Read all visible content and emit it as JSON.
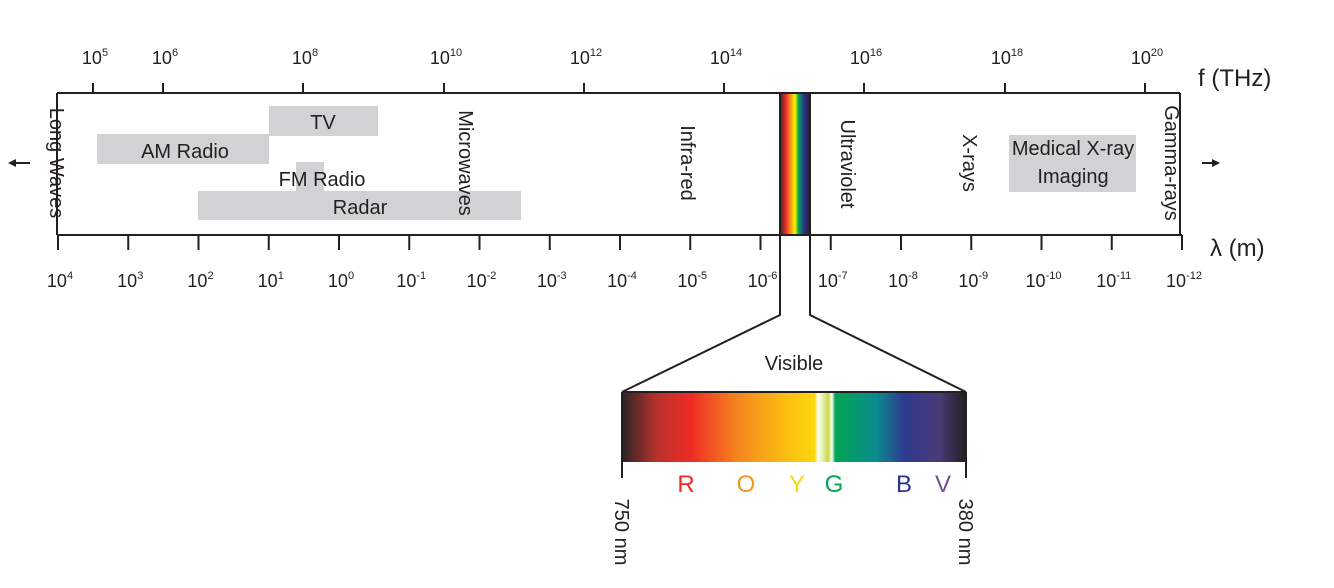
{
  "frequency_axis": {
    "label": "f (THz)",
    "ticks": [
      {
        "base": "10",
        "exponent": "5"
      },
      {
        "base": "10",
        "exponent": "6"
      },
      {
        "base": "10",
        "exponent": "8"
      },
      {
        "base": "10",
        "exponent": "10"
      },
      {
        "base": "10",
        "exponent": "12"
      },
      {
        "base": "10",
        "exponent": "14"
      },
      {
        "base": "10",
        "exponent": "16"
      },
      {
        "base": "10",
        "exponent": "18"
      },
      {
        "base": "10",
        "exponent": "20"
      }
    ]
  },
  "wavelength_axis": {
    "label": "λ (m)",
    "ticks": [
      {
        "base": "10",
        "exponent": "4"
      },
      {
        "base": "10",
        "exponent": "3"
      },
      {
        "base": "10",
        "exponent": "2"
      },
      {
        "base": "10",
        "exponent": "1"
      },
      {
        "base": "10",
        "exponent": "0"
      },
      {
        "base": "10",
        "exponent": "-1"
      },
      {
        "base": "10",
        "exponent": "-2"
      },
      {
        "base": "10",
        "exponent": "-3"
      },
      {
        "base": "10",
        "exponent": "-4"
      },
      {
        "base": "10",
        "exponent": "-5"
      },
      {
        "base": "10",
        "exponent": "-6"
      },
      {
        "base": "10",
        "exponent": "-7"
      },
      {
        "base": "10",
        "exponent": "-8"
      },
      {
        "base": "10",
        "exponent": "-9"
      },
      {
        "base": "10",
        "exponent": "-10"
      },
      {
        "base": "10",
        "exponent": "-11"
      },
      {
        "base": "10",
        "exponent": "-12"
      }
    ]
  },
  "regions": [
    "Long Waves",
    "Microwaves",
    "Infra-red",
    "Ultraviolet",
    "X-rays",
    "Gamma-rays"
  ],
  "bands": [
    {
      "lines": [
        "TV"
      ]
    },
    {
      "lines": [
        "AM Radio"
      ]
    },
    {
      "lines": [
        "FM Radio"
      ]
    },
    {
      "lines": [
        "Radar"
      ]
    },
    {
      "lines": [
        "Medical X-ray",
        "Imaging"
      ]
    }
  ],
  "visible": {
    "title": "Visible",
    "colors": [
      "R",
      "O",
      "Y",
      "G",
      "B",
      "V"
    ],
    "start_label": "750 nm",
    "end_label": "380 nm"
  }
}
